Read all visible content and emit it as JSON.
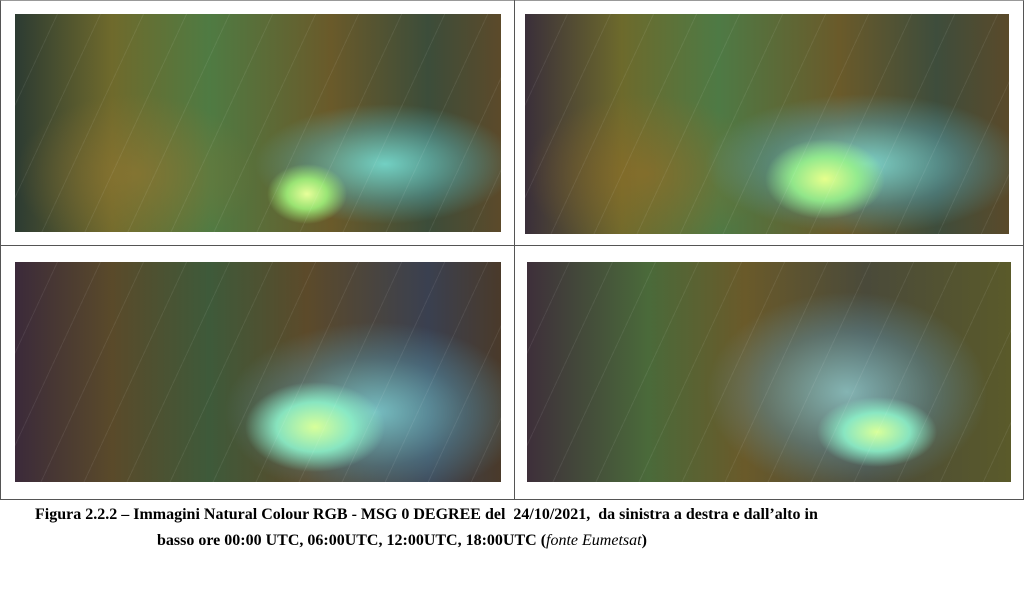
{
  "caption": {
    "line1": "Figura 2.2.2 – Immagini Natural Colour RGB - MSG 0 DEGREE del  24/10/2021,  da sinistra a destra e dall’alto in",
    "line2_start": "basso ore 00:00 UTC, 06:00UTC, 12:00UTC, 18:00UTC (",
    "source": "fonte Eumetsat",
    "line2_end": ")"
  }
}
